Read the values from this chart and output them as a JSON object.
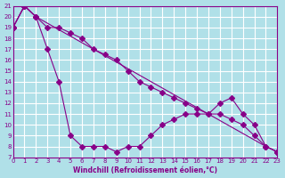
{
  "xlabel": "Windchill (Refroidissement éolien,°C)",
  "ylabel": "",
  "bg_color": "#b0e0e8",
  "grid_color": "#ffffff",
  "line_color": "#880088",
  "xlim": [
    0,
    23
  ],
  "ylim": [
    7,
    21
  ],
  "xticks": [
    0,
    1,
    2,
    3,
    4,
    5,
    6,
    7,
    8,
    9,
    10,
    11,
    12,
    13,
    14,
    15,
    16,
    17,
    18,
    19,
    20,
    21,
    22,
    23
  ],
  "yticks": [
    7,
    8,
    9,
    10,
    11,
    12,
    13,
    14,
    15,
    16,
    17,
    18,
    19,
    20,
    21
  ],
  "line1_x": [
    0,
    1,
    2,
    3,
    4,
    5,
    6,
    7,
    8,
    9,
    10,
    11,
    12,
    13,
    14,
    15,
    16,
    17,
    18,
    19,
    20,
    21,
    22,
    23
  ],
  "line1_y": [
    19,
    21,
    20,
    17,
    14,
    9,
    8,
    8,
    8,
    7.5,
    8,
    8,
    9,
    10,
    10.5,
    11,
    11,
    11,
    12,
    12.5,
    11,
    10,
    8,
    7.5
  ],
  "line2_x": [
    0,
    1,
    2,
    3,
    4,
    5,
    6,
    7,
    8,
    9,
    10,
    11,
    12,
    13,
    14,
    15,
    16,
    17,
    18,
    19,
    20,
    21,
    22,
    23
  ],
  "line2_y": [
    19,
    21,
    20,
    19,
    19,
    18.5,
    18,
    17,
    16.5,
    16,
    15,
    14,
    13.5,
    13,
    12.5,
    12,
    11.5,
    11,
    11,
    10.5,
    10,
    9,
    8,
    7.5
  ],
  "line3_x": [
    0,
    1,
    2,
    22,
    23
  ],
  "line3_y": [
    19,
    21,
    20,
    8,
    7.5
  ]
}
